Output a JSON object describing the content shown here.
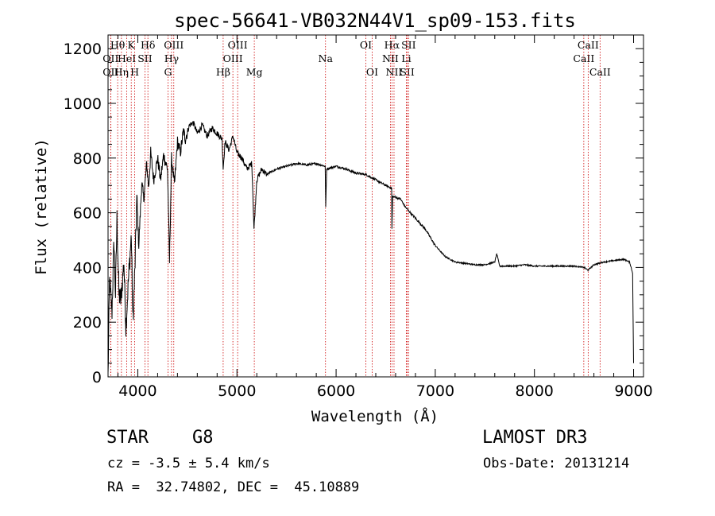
{
  "chart_data": {
    "type": "line",
    "title": "spec-56641-VB032N44V1_sp09-153.fits",
    "xlabel": "Wavelength (Å)",
    "ylabel": "Flux (relative)",
    "xlim": [
      3700,
      9100
    ],
    "ylim": [
      0,
      1250
    ],
    "xticks": [
      4000,
      5000,
      6000,
      7000,
      8000,
      9000
    ],
    "yticks": [
      0,
      200,
      400,
      600,
      800,
      1000,
      1200
    ],
    "spectrum_anchors": [
      [
        3700,
        0
      ],
      [
        3715,
        350
      ],
      [
        3740,
        240
      ],
      [
        3760,
        500
      ],
      [
        3775,
        300
      ],
      [
        3790,
        580
      ],
      [
        3810,
        300
      ],
      [
        3830,
        280
      ],
      [
        3860,
        420
      ],
      [
        3880,
        180
      ],
      [
        3905,
        350
      ],
      [
        3935,
        520
      ],
      [
        3950,
        200
      ],
      [
        3970,
        380
      ],
      [
        3990,
        650
      ],
      [
        4010,
        480
      ],
      [
        4040,
        710
      ],
      [
        4060,
        650
      ],
      [
        4090,
        780
      ],
      [
        4110,
        690
      ],
      [
        4130,
        820
      ],
      [
        4160,
        720
      ],
      [
        4200,
        800
      ],
      [
        4230,
        720
      ],
      [
        4260,
        810
      ],
      [
        4300,
        760
      ],
      [
        4320,
        420
      ],
      [
        4340,
        800
      ],
      [
        4370,
        700
      ],
      [
        4400,
        860
      ],
      [
        4430,
        820
      ],
      [
        4460,
        900
      ],
      [
        4480,
        870
      ],
      [
        4520,
        920
      ],
      [
        4560,
        930
      ],
      [
        4600,
        890
      ],
      [
        4650,
        920
      ],
      [
        4700,
        880
      ],
      [
        4750,
        910
      ],
      [
        4800,
        890
      ],
      [
        4850,
        870
      ],
      [
        4861,
        760
      ],
      [
        4880,
        860
      ],
      [
        4920,
        830
      ],
      [
        4960,
        880
      ],
      [
        5000,
        820
      ],
      [
        5050,
        800
      ],
      [
        5100,
        760
      ],
      [
        5150,
        780
      ],
      [
        5172,
        540
      ],
      [
        5200,
        720
      ],
      [
        5250,
        760
      ],
      [
        5300,
        740
      ],
      [
        5400,
        760
      ],
      [
        5500,
        770
      ],
      [
        5600,
        780
      ],
      [
        5700,
        775
      ],
      [
        5800,
        780
      ],
      [
        5890,
        770
      ],
      [
        5895,
        620
      ],
      [
        5905,
        760
      ],
      [
        6000,
        770
      ],
      [
        6100,
        760
      ],
      [
        6200,
        745
      ],
      [
        6300,
        740
      ],
      [
        6400,
        720
      ],
      [
        6500,
        700
      ],
      [
        6560,
        690
      ],
      [
        6563,
        540
      ],
      [
        6570,
        660
      ],
      [
        6650,
        650
      ],
      [
        6700,
        620
      ],
      [
        6800,
        580
      ],
      [
        6900,
        540
      ],
      [
        7000,
        480
      ],
      [
        7100,
        440
      ],
      [
        7200,
        420
      ],
      [
        7300,
        415
      ],
      [
        7400,
        410
      ],
      [
        7500,
        410
      ],
      [
        7600,
        420
      ],
      [
        7620,
        450
      ],
      [
        7650,
        405
      ],
      [
        7700,
        405
      ],
      [
        7800,
        405
      ],
      [
        7900,
        410
      ],
      [
        8000,
        405
      ],
      [
        8100,
        405
      ],
      [
        8200,
        405
      ],
      [
        8300,
        405
      ],
      [
        8400,
        405
      ],
      [
        8500,
        400
      ],
      [
        8540,
        390
      ],
      [
        8600,
        410
      ],
      [
        8700,
        420
      ],
      [
        8800,
        425
      ],
      [
        8900,
        430
      ],
      [
        8960,
        420
      ],
      [
        8990,
        380
      ],
      [
        9000,
        50
      ]
    ],
    "line_markers": [
      {
        "name": "Hθ",
        "wave": 3797,
        "row": 1
      },
      {
        "name": "OII",
        "wave": 3727,
        "row": 2
      },
      {
        "name": "OII",
        "wave": 3727,
        "row": 3
      },
      {
        "name": "Hη",
        "wave": 3835,
        "row": 3
      },
      {
        "name": "HeI",
        "wave": 3889,
        "row": 2
      },
      {
        "name": "K",
        "wave": 3934,
        "row": 1
      },
      {
        "name": "H",
        "wave": 3969,
        "row": 3
      },
      {
        "name": "SII",
        "wave": 4072,
        "row": 2
      },
      {
        "name": "Hδ",
        "wave": 4102,
        "row": 1
      },
      {
        "name": "G",
        "wave": 4305,
        "row": 3
      },
      {
        "name": "Hγ",
        "wave": 4340,
        "row": 2
      },
      {
        "name": "OIII",
        "wave": 4363,
        "row": 1
      },
      {
        "name": "Hβ",
        "wave": 4861,
        "row": 3
      },
      {
        "name": "OIII",
        "wave": 4959,
        "row": 2
      },
      {
        "name": "OIII",
        "wave": 5007,
        "row": 1
      },
      {
        "name": "Mg",
        "wave": 5175,
        "row": 3
      },
      {
        "name": "Na",
        "wave": 5893,
        "row": 2
      },
      {
        "name": "OI",
        "wave": 6300,
        "row": 1
      },
      {
        "name": "OI",
        "wave": 6364,
        "row": 3
      },
      {
        "name": "NII",
        "wave": 6548,
        "row": 2
      },
      {
        "name": "Hα",
        "wave": 6563,
        "row": 1
      },
      {
        "name": "NII",
        "wave": 6584,
        "row": 3
      },
      {
        "name": "SII",
        "wave": 6717,
        "row": 3
      },
      {
        "name": "Li",
        "wave": 6708,
        "row": 2
      },
      {
        "name": "SII",
        "wave": 6731,
        "row": 1
      },
      {
        "name": "CaII",
        "wave": 8498,
        "row": 2
      },
      {
        "name": "CaII",
        "wave": 8542,
        "row": 1
      },
      {
        "name": "CaII",
        "wave": 8662,
        "row": 3
      }
    ]
  },
  "info": {
    "object_class": "STAR",
    "subclass": "G8",
    "survey": "LAMOST DR3",
    "cz": "cz = -3.5 ± 5.4 km/s",
    "obs_date": "Obs-Date: 20131214",
    "coords": "RA =  32.74802, DEC =  45.10889"
  },
  "colors": {
    "marker": "#cc0000",
    "spectrum": "#000000",
    "axes": "#000000"
  }
}
